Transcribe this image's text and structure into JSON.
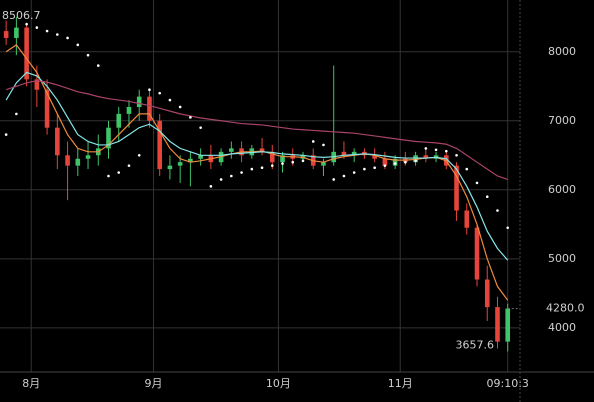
{
  "chart_data": {
    "type": "candlestick",
    "open": [
      8300,
      8200,
      8350,
      7600,
      7450,
      6900,
      6500,
      6350,
      6450,
      6500,
      6600,
      6900,
      7100,
      7200,
      7350,
      7000,
      6300,
      6350,
      6400,
      6450,
      6500,
      6400,
      6550,
      6600,
      6500,
      6600,
      6550,
      6400,
      6500,
      6450,
      6500,
      6350,
      6400,
      6550,
      6500,
      6550,
      6500,
      6450,
      6350,
      6450,
      6400,
      6500,
      6450,
      6500,
      6350,
      5700,
      5450,
      4700,
      4300,
      3800
    ],
    "high": [
      8450,
      8506.7,
      8420,
      7800,
      7600,
      7100,
      6700,
      6600,
      6700,
      6800,
      7000,
      7200,
      7300,
      7450,
      7450,
      7100,
      6500,
      6500,
      6550,
      6600,
      6650,
      6600,
      6700,
      6700,
      6650,
      6750,
      6650,
      6550,
      6600,
      6550,
      6600,
      6450,
      7800,
      6700,
      6600,
      6600,
      6600,
      6550,
      6500,
      6550,
      6550,
      6600,
      6550,
      6550,
      6400,
      5800,
      5500,
      4900,
      4450,
      4350
    ],
    "low": [
      8100,
      7950,
      7500,
      7200,
      6800,
      6300,
      5850,
      6200,
      6300,
      6350,
      6450,
      6700,
      6900,
      7000,
      6900,
      6200,
      6150,
      6100,
      6050,
      6350,
      6300,
      6350,
      6450,
      6400,
      6450,
      6500,
      6300,
      6250,
      6350,
      6400,
      6300,
      6200,
      6350,
      6450,
      6400,
      6450,
      6400,
      6300,
      6300,
      6350,
      6350,
      6400,
      6400,
      6300,
      5550,
      5350,
      4600,
      4100,
      3700,
      3657.6
    ],
    "close": [
      8200,
      8350,
      7600,
      7450,
      6900,
      6500,
      6350,
      6450,
      6500,
      6600,
      6900,
      7100,
      7200,
      7350,
      7000,
      6300,
      6350,
      6400,
      6450,
      6500,
      6400,
      6550,
      6600,
      6500,
      6600,
      6550,
      6400,
      6500,
      6450,
      6500,
      6350,
      6400,
      6550,
      6500,
      6550,
      6500,
      6450,
      6350,
      6450,
      6400,
      6500,
      6450,
      6500,
      6350,
      5700,
      5450,
      4700,
      4300,
      3800,
      4280
    ],
    "up_color": "#3fc46a",
    "down_color": "#e5453b",
    "series": [
      {
        "color": "#f08a3c",
        "values": [
          8000,
          8100,
          7900,
          7700,
          7400,
          7100,
          6800,
          6600,
          6550,
          6550,
          6650,
          6800,
          6950,
          7100,
          7100,
          6850,
          6600,
          6450,
          6400,
          6420,
          6450,
          6480,
          6520,
          6550,
          6550,
          6560,
          6520,
          6480,
          6480,
          6470,
          6420,
          6400,
          6450,
          6480,
          6500,
          6520,
          6500,
          6450,
          6430,
          6430,
          6440,
          6460,
          6470,
          6420,
          6200,
          5900,
          5500,
          5000,
          4600,
          4400
        ]
      },
      {
        "color": "#86e6e6",
        "values": [
          7300,
          7550,
          7700,
          7650,
          7500,
          7300,
          7050,
          6800,
          6700,
          6650,
          6650,
          6700,
          6800,
          6900,
          6950,
          6850,
          6700,
          6600,
          6550,
          6500,
          6500,
          6500,
          6520,
          6530,
          6540,
          6550,
          6540,
          6520,
          6510,
          6500,
          6480,
          6470,
          6480,
          6500,
          6510,
          6520,
          6510,
          6490,
          6470,
          6460,
          6460,
          6460,
          6470,
          6450,
          6300,
          6050,
          5750,
          5400,
          5150,
          4980
        ]
      },
      {
        "color": "#a8436b",
        "values": [
          7450,
          7500,
          7550,
          7580,
          7560,
          7520,
          7470,
          7420,
          7390,
          7350,
          7320,
          7300,
          7280,
          7250,
          7220,
          7180,
          7140,
          7100,
          7070,
          7040,
          7020,
          7000,
          6980,
          6960,
          6950,
          6940,
          6920,
          6900,
          6880,
          6870,
          6860,
          6850,
          6840,
          6830,
          6820,
          6800,
          6780,
          6760,
          6740,
          6720,
          6700,
          6690,
          6680,
          6660,
          6600,
          6500,
          6400,
          6300,
          6200,
          6150
        ]
      }
    ],
    "sar": {
      "color": "#ffffff",
      "values": [
        6800,
        7100,
        8400,
        8350,
        8300,
        8250,
        8200,
        8100,
        7950,
        7800,
        6200,
        6250,
        6350,
        6500,
        7450,
        7400,
        7300,
        7200,
        7050,
        6900,
        6050,
        6150,
        6200,
        6250,
        6300,
        6320,
        6350,
        6380,
        6400,
        6420,
        6700,
        6650,
        6150,
        6200,
        6250,
        6300,
        6320,
        6350,
        6380,
        6400,
        6420,
        6600,
        6580,
        6560,
        6500,
        6300,
        6100,
        5900,
        5700,
        5450
      ]
    },
    "xlim": [
      -0.6,
      50.2
    ],
    "xticks": [
      {
        "value": 2.45,
        "label": "8月"
      },
      {
        "value": 14.4,
        "label": "9月"
      },
      {
        "value": 26.6,
        "label": "10月"
      },
      {
        "value": 38.5,
        "label": "11月"
      },
      {
        "value": 49,
        "label": "09:10:3"
      }
    ],
    "ylim": [
      3360,
      8750
    ],
    "yticks": [
      4000,
      5000,
      6000,
      7000,
      8000
    ],
    "grid": true,
    "high_label": 8506.7,
    "low_label": 3657.6,
    "last_price": {
      "value": 4280,
      "label": "4280.0"
    }
  }
}
